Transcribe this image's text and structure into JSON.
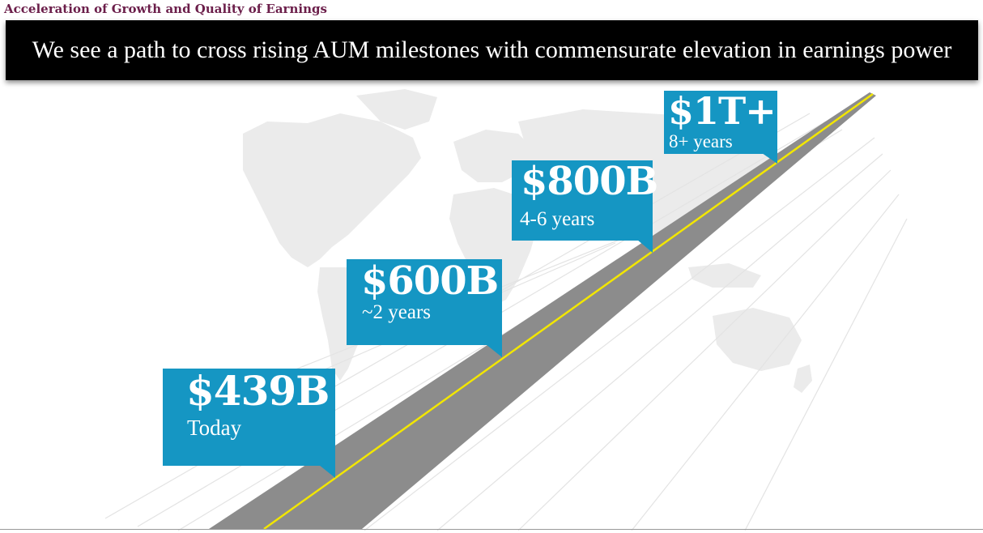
{
  "header": {
    "section_title": "Acceleration of Growth and Quality of Earnings",
    "banner_text": "We see a path to cross rising AUM milestones with commensurate elevation in earnings power"
  },
  "colors": {
    "callout": "#1596c3",
    "road": "#8c8c8c",
    "center_line": "#f2e600",
    "map": "#ebebeb",
    "title": "#6b1e4a"
  },
  "milestones": [
    {
      "value": "$439B",
      "label": "Today"
    },
    {
      "value": "$600B",
      "label": "~2 years"
    },
    {
      "value": "$800B",
      "label": "4-6 years"
    },
    {
      "value": "$1T+",
      "label": "8+ years"
    }
  ]
}
